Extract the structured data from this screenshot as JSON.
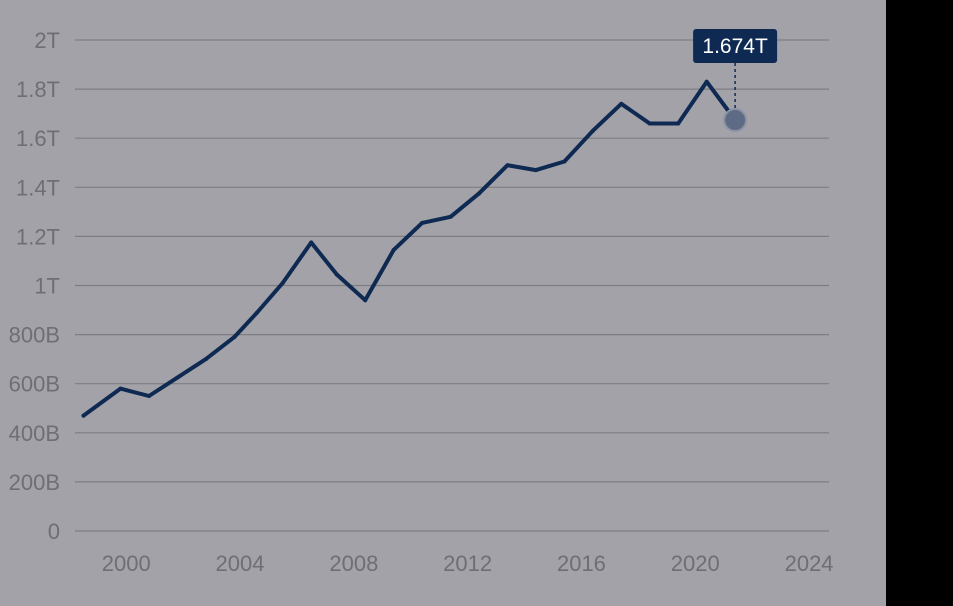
{
  "chart_data": {
    "type": "line",
    "y_ticks": [
      {
        "value": 0,
        "label": "0"
      },
      {
        "value": 200000000000,
        "label": "200B"
      },
      {
        "value": 400000000000,
        "label": "400B"
      },
      {
        "value": 600000000000,
        "label": "600B"
      },
      {
        "value": 800000000000,
        "label": "800B"
      },
      {
        "value": 1000000000000,
        "label": "1T"
      },
      {
        "value": 1200000000000,
        "label": "1.2T"
      },
      {
        "value": 1400000000000,
        "label": "1.4T"
      },
      {
        "value": 1600000000000,
        "label": "1.6T"
      },
      {
        "value": 1800000000000,
        "label": "1.8T"
      },
      {
        "value": 2000000000000,
        "label": "2T"
      }
    ],
    "x_ticks": [
      {
        "value": 2000,
        "label": "2000"
      },
      {
        "value": 2004,
        "label": "2004"
      },
      {
        "value": 2008,
        "label": "2008"
      },
      {
        "value": 2012,
        "label": "2012"
      },
      {
        "value": 2016,
        "label": "2016"
      },
      {
        "value": 2020,
        "label": "2020"
      },
      {
        "value": 2024,
        "label": "2024"
      }
    ],
    "xlim": [
      1998.2,
      2024.7
    ],
    "ylim": [
      0,
      2000000000000
    ],
    "grid": true,
    "series": [
      {
        "values": [
          {
            "x": 1998.5,
            "y": 470000000000
          },
          {
            "x": 1999.8,
            "y": 580000000000
          },
          {
            "x": 2000.8,
            "y": 550000000000
          },
          {
            "x": 2001.8,
            "y": 625000000000
          },
          {
            "x": 2002.8,
            "y": 700000000000
          },
          {
            "x": 2003.8,
            "y": 790000000000
          },
          {
            "x": 2004.6,
            "y": 890000000000
          },
          {
            "x": 2005.5,
            "y": 1010000000000
          },
          {
            "x": 2006.5,
            "y": 1175000000000
          },
          {
            "x": 2007.4,
            "y": 1045000000000
          },
          {
            "x": 2008.4,
            "y": 940000000000
          },
          {
            "x": 2009.4,
            "y": 1145000000000
          },
          {
            "x": 2010.4,
            "y": 1255000000000
          },
          {
            "x": 2011.4,
            "y": 1280000000000
          },
          {
            "x": 2012.4,
            "y": 1375000000000
          },
          {
            "x": 2013.4,
            "y": 1490000000000
          },
          {
            "x": 2014.4,
            "y": 1470000000000
          },
          {
            "x": 2015.4,
            "y": 1505000000000
          },
          {
            "x": 2016.4,
            "y": 1630000000000
          },
          {
            "x": 2017.4,
            "y": 1740000000000
          },
          {
            "x": 2018.4,
            "y": 1660000000000
          },
          {
            "x": 2019.4,
            "y": 1660000000000
          },
          {
            "x": 2020.4,
            "y": 1830000000000
          },
          {
            "x": 2021.4,
            "y": 1674000000000
          }
        ]
      }
    ],
    "highlight": {
      "index": 23,
      "label": "1.674T"
    }
  },
  "colors": {
    "background": "#a3a2a8",
    "outside": "#000000",
    "grid": "#7e7d84",
    "axis_text": "#6e6e75",
    "line": "#0f2a52",
    "tooltip_bg": "#0f2a52",
    "tooltip_text": "#ffffff",
    "marker_fill": "#5d6b85",
    "marker_stroke": "#8b93a4"
  }
}
